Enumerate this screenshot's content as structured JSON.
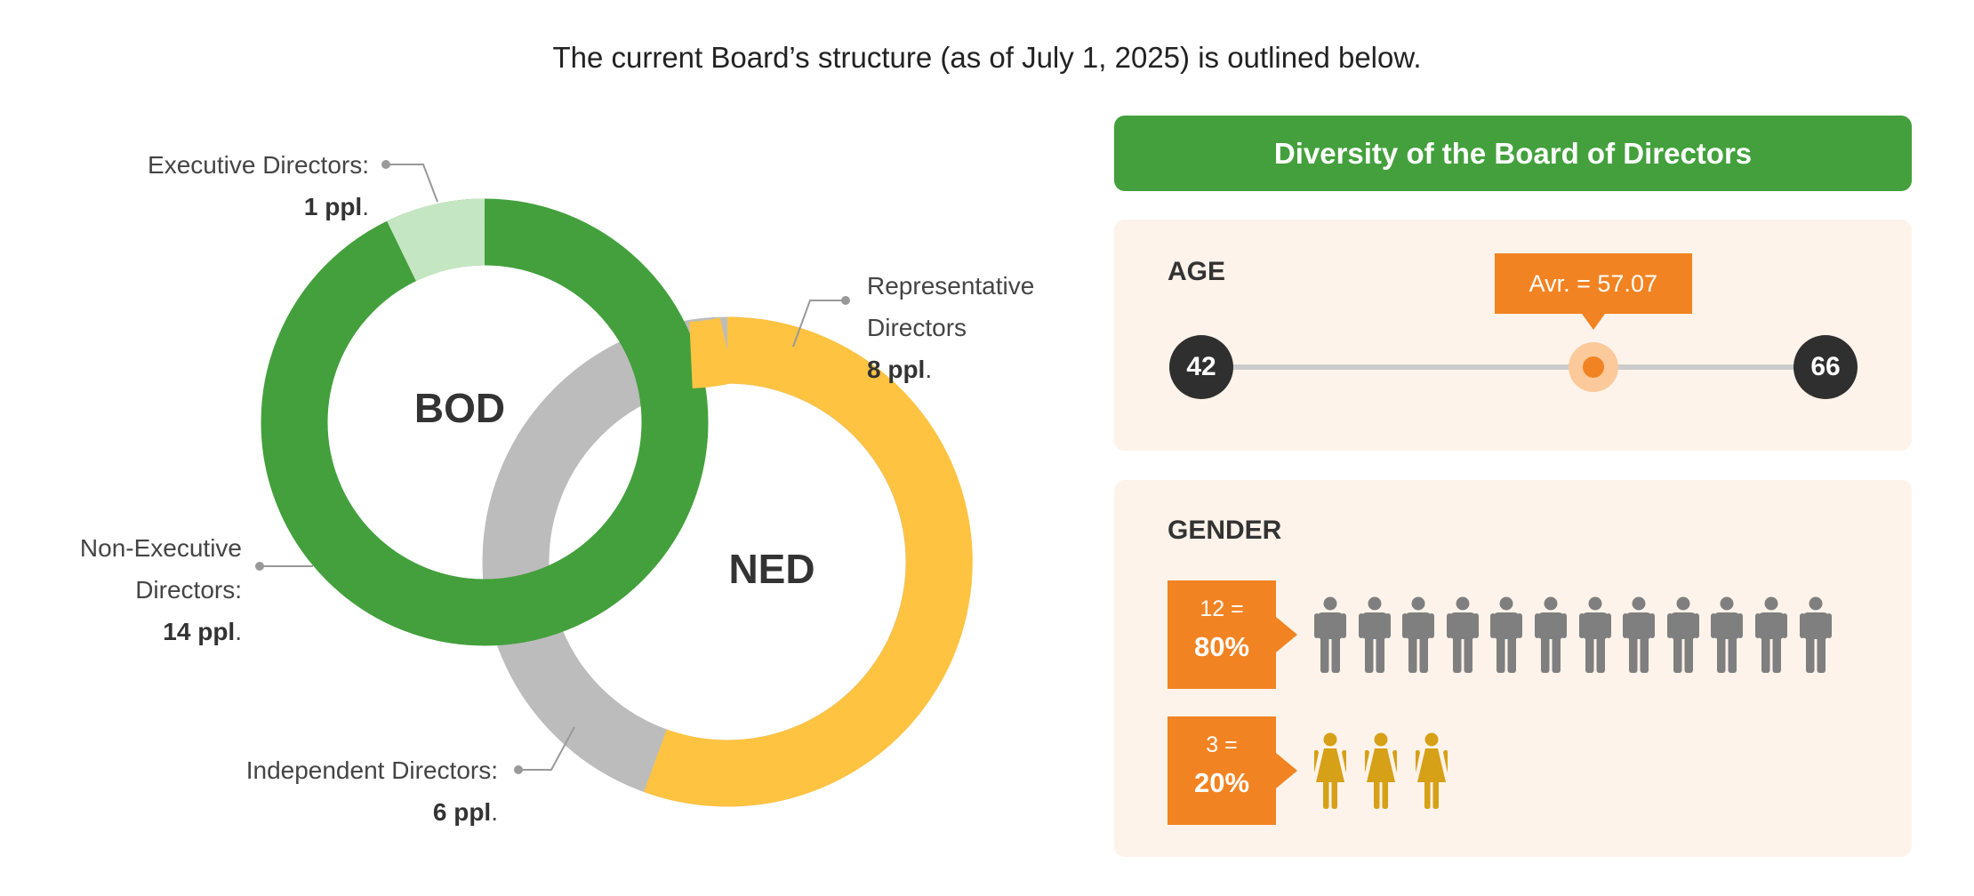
{
  "header": {
    "title": "The current Board’s structure (as of July 1, 2025) is outlined below."
  },
  "structure": {
    "bod_label": "BOD",
    "ned_label": "NED",
    "executive": {
      "label": "Executive Directors:",
      "count": "1 ppl",
      "dot": "."
    },
    "non_executive": {
      "label_line1": "Non-Executive",
      "label_line2": "Directors:",
      "count": "14 ppl",
      "dot": "."
    },
    "representative": {
      "label_line1": "Representative",
      "label_line2": "Directors",
      "count": "8 ppl",
      "dot": "."
    },
    "independent": {
      "label": "Independent Directors:",
      "count": "6 ppl",
      "dot": "."
    }
  },
  "diversity": {
    "title": "Diversity of the Board of Directors",
    "age": {
      "title": "AGE",
      "min": "42",
      "max": "66",
      "average_label": "Avr. = 57.07",
      "average_value": 57.07,
      "min_value": 42,
      "max_value": 66
    },
    "gender": {
      "title": "GENDER",
      "male": {
        "count_label": "12 =",
        "percent": "80%",
        "count": 12
      },
      "female": {
        "count_label": "3 =",
        "percent": "20%",
        "count": 3
      }
    }
  },
  "colors": {
    "green": "#43a03c",
    "light_green": "#c5e6c3",
    "grey": "#bcbcbc",
    "yellow": "#fec341",
    "orange": "#f28322",
    "male_icon": "#7f7f7f",
    "female_icon": "#d6a017",
    "dark": "#2f2f2f",
    "card_bg": "#fdf3ea"
  }
}
